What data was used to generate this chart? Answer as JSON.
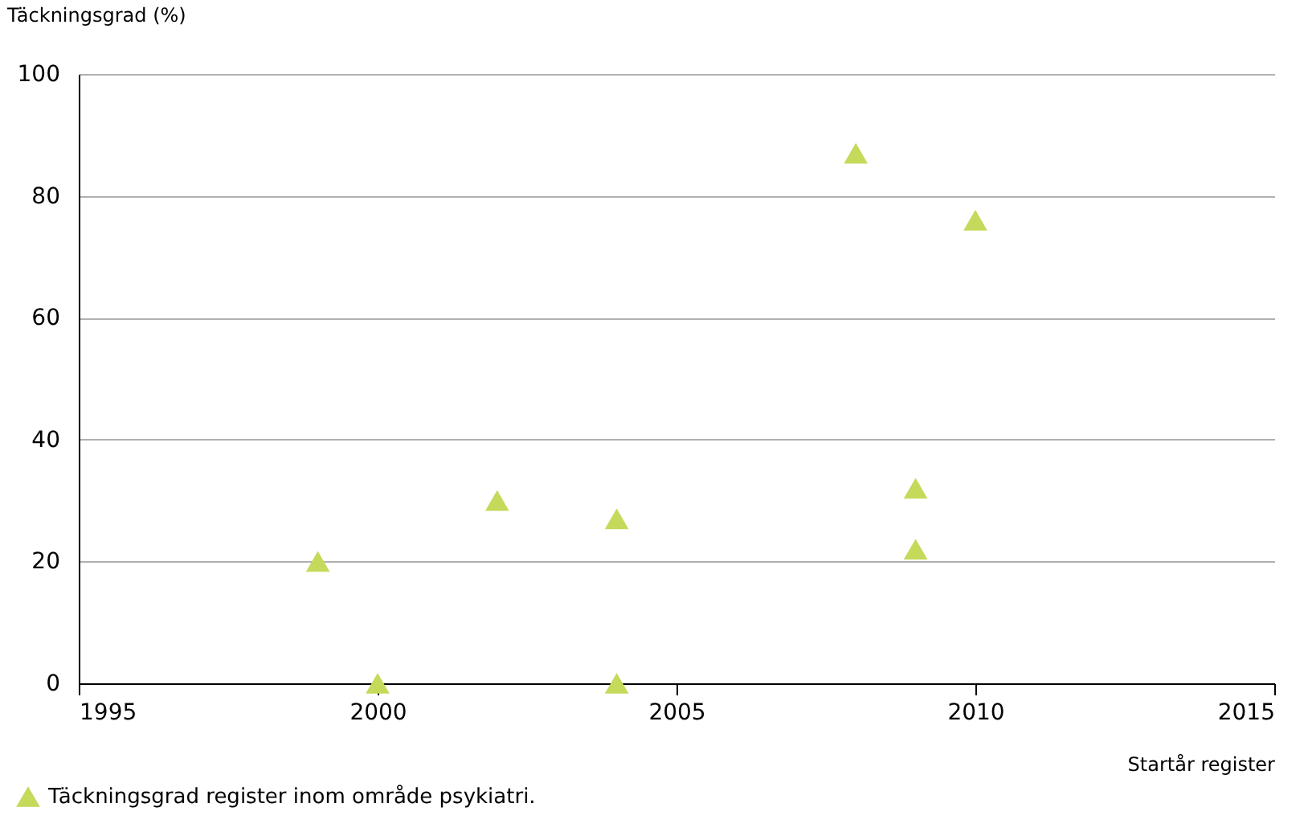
{
  "chart_data": {
    "type": "scatter",
    "ylabel": "Täckningsgrad (%)",
    "xlabel": "Startår register",
    "xlim": [
      1995,
      2015
    ],
    "xticks": [
      1995,
      2000,
      2005,
      2010,
      2015
    ],
    "ylim": [
      0,
      100
    ],
    "yticks": [
      0,
      20,
      40,
      60,
      80,
      100
    ],
    "grid": "y",
    "legend": "bottom left",
    "marker": "triangle",
    "series": [
      {
        "name": "Täckningsgrad register inom område psykiatri.",
        "color": "#c5d95a",
        "x": [
          1999,
          2000,
          2002,
          2004,
          2004,
          2008,
          2009,
          2009,
          2010
        ],
        "values": [
          20,
          0,
          30,
          27,
          0,
          87,
          32,
          22,
          76
        ]
      }
    ]
  }
}
